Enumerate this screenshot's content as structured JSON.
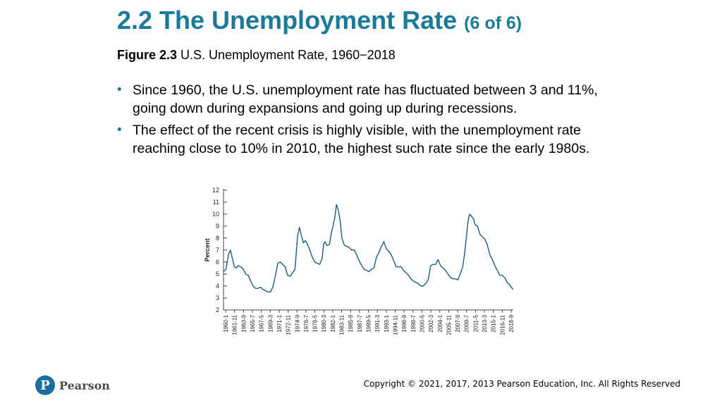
{
  "slide": {
    "title": "2.2 The Unemployment Rate",
    "title_sub": "(6 of 6)",
    "figure_label": "Figure 2.3",
    "figure_title": "U.S. Unemployment Rate, 1960−2018",
    "bullets": [
      "Since 1960, the U.S. unemployment rate has fluctuated between 3 and 11%, going down during expansions and going up during recessions.",
      "The effect of the recent crisis is highly visible, with the unemployment rate reaching close to 10% in 2010, the highest such rate since the early 1980s."
    ],
    "bullet_glyph": "•"
  },
  "footer": {
    "logo_letter": "P",
    "logo_text": "Pearson",
    "copyright": "Copyright © 2021, 2017, 2013 Pearson Education, Inc. All Rights Reserved"
  },
  "colors": {
    "title": "#1a7a9a",
    "series": "#1b5f7e",
    "axis": "#444444"
  },
  "chart_data": {
    "type": "line",
    "title": "",
    "xlabel": "",
    "ylabel": "Percent",
    "ylim": [
      2,
      12
    ],
    "yticks": [
      2,
      3,
      4,
      5,
      6,
      7,
      8,
      9,
      10,
      11,
      12
    ],
    "xlim": [
      1960.0,
      2018.75
    ],
    "xtick_labels": [
      "1960-1",
      "1961-11",
      "1963-9",
      "1965-7",
      "1967-5",
      "1969-3",
      "1971-1",
      "1972-11",
      "1974-9",
      "1976-7",
      "1978-5",
      "1980-3",
      "1982-1",
      "1983-11",
      "1985-9",
      "1987-7",
      "1989-5",
      "1991-3",
      "1993-1",
      "1994-11",
      "1996-9",
      "1998-7",
      "2000-5",
      "2002-3",
      "2004-1",
      "2005-11",
      "2007-9",
      "2009-7",
      "2011-5",
      "2013-3",
      "2015-1",
      "2016-11",
      "2018-9"
    ],
    "grid": false,
    "legend": "none",
    "series": [
      {
        "x": [
          1960.0,
          1960.5,
          1961.0,
          1961.4,
          1961.8,
          1962.2,
          1962.6,
          1963.0,
          1963.5,
          1964.0,
          1964.5,
          1965.0,
          1965.5,
          1966.0,
          1966.5,
          1967.0,
          1967.5,
          1968.0,
          1968.5,
          1969.0,
          1969.5,
          1970.0,
          1970.5,
          1971.0,
          1971.5,
          1972.0,
          1972.5,
          1973.0,
          1973.5,
          1974.0,
          1974.5,
          1975.0,
          1975.4,
          1975.8,
          1976.2,
          1976.6,
          1977.0,
          1977.5,
          1978.0,
          1978.5,
          1979.0,
          1979.5,
          1980.0,
          1980.3,
          1980.6,
          1980.9,
          1981.2,
          1981.5,
          1981.8,
          1982.2,
          1982.6,
          1982.9,
          1983.3,
          1983.7,
          1984.0,
          1984.5,
          1985.0,
          1985.5,
          1986.0,
          1986.5,
          1987.0,
          1987.5,
          1988.0,
          1988.5,
          1989.0,
          1989.5,
          1990.0,
          1990.5,
          1991.0,
          1991.5,
          1992.0,
          1992.5,
          1993.0,
          1993.5,
          1994.0,
          1994.5,
          1995.0,
          1995.5,
          1996.0,
          1996.5,
          1997.0,
          1997.5,
          1998.0,
          1998.5,
          1999.0,
          1999.5,
          2000.0,
          2000.5,
          2001.0,
          2001.5,
          2002.0,
          2002.5,
          2003.0,
          2003.5,
          2004.0,
          2004.5,
          2005.0,
          2005.5,
          2006.0,
          2006.5,
          2007.0,
          2007.5,
          2008.0,
          2008.5,
          2008.9,
          2009.3,
          2009.6,
          2009.9,
          2010.3,
          2010.7,
          2011.0,
          2011.5,
          2012.0,
          2012.5,
          2013.0,
          2013.5,
          2014.0,
          2014.5,
          2015.0,
          2015.5,
          2016.0,
          2016.5,
          2017.0,
          2017.5,
          2018.0,
          2018.7
        ],
        "y": [
          5.2,
          5.4,
          6.6,
          7.0,
          6.3,
          5.6,
          5.5,
          5.7,
          5.6,
          5.4,
          5.0,
          4.9,
          4.4,
          4.0,
          3.8,
          3.8,
          3.9,
          3.7,
          3.6,
          3.5,
          3.5,
          3.9,
          4.8,
          5.9,
          6.0,
          5.8,
          5.6,
          4.9,
          4.8,
          5.1,
          5.4,
          8.1,
          8.9,
          8.2,
          7.6,
          7.8,
          7.5,
          7.0,
          6.4,
          6.0,
          5.9,
          5.8,
          6.3,
          7.5,
          7.7,
          7.4,
          7.4,
          7.5,
          8.3,
          9.0,
          9.8,
          10.8,
          10.3,
          9.3,
          8.0,
          7.4,
          7.3,
          7.2,
          7.0,
          7.0,
          6.6,
          6.1,
          5.7,
          5.4,
          5.3,
          5.2,
          5.4,
          5.5,
          6.4,
          6.8,
          7.3,
          7.7,
          7.1,
          6.9,
          6.6,
          6.1,
          5.6,
          5.6,
          5.6,
          5.3,
          5.1,
          4.9,
          4.6,
          4.4,
          4.3,
          4.2,
          4.0,
          4.0,
          4.2,
          4.5,
          5.7,
          5.8,
          5.8,
          6.2,
          5.7,
          5.5,
          5.3,
          5.0,
          4.7,
          4.6,
          4.6,
          4.5,
          5.0,
          5.6,
          6.8,
          8.3,
          9.5,
          10.0,
          9.8,
          9.6,
          9.1,
          9.0,
          8.3,
          8.1,
          7.9,
          7.4,
          6.6,
          6.2,
          5.7,
          5.3,
          4.9,
          4.9,
          4.7,
          4.3,
          4.1,
          3.7
        ]
      }
    ]
  }
}
